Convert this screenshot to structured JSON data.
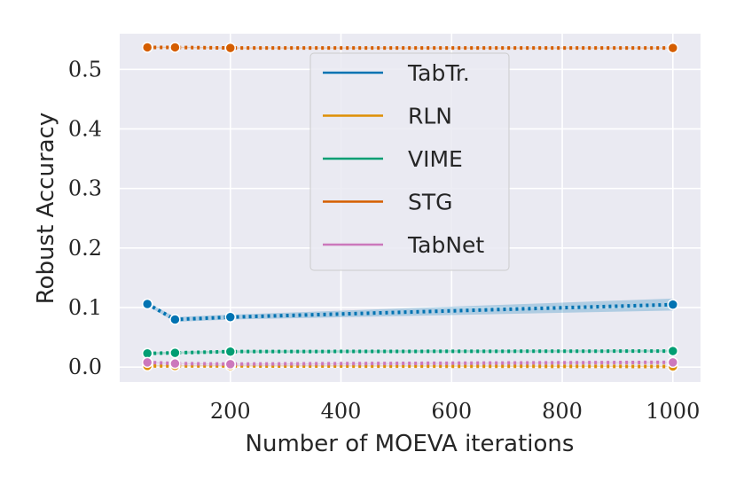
{
  "chart_data": {
    "type": "line",
    "xlabel": "Number of MOEVA iterations",
    "ylabel": "Robust Accuracy",
    "xlim": [
      0,
      1050
    ],
    "ylim": [
      -0.025,
      0.56
    ],
    "xticks": [
      200,
      400,
      600,
      800,
      1000
    ],
    "xtick_labels": [
      "200",
      "400",
      "600",
      "800",
      "1000"
    ],
    "yticks": [
      0.0,
      0.1,
      0.2,
      0.3,
      0.4,
      0.5
    ],
    "ytick_labels": [
      "0.0",
      "0.1",
      "0.2",
      "0.3",
      "0.4",
      "0.5"
    ],
    "grid": true,
    "legend_position": "upper-center",
    "x": [
      50,
      100,
      200,
      1000
    ],
    "series": [
      {
        "name": "TabTr.",
        "color": "#0173b2",
        "values": [
          0.106,
          0.08,
          0.084,
          0.105
        ],
        "band": [
          0.003,
          0.004,
          0.004,
          0.01
        ]
      },
      {
        "name": "RLN",
        "color": "#de8f05",
        "values": [
          0.002,
          0.002,
          0.002,
          0.001
        ],
        "band": [
          0.001,
          0.001,
          0.001,
          0.001
        ]
      },
      {
        "name": "VIME",
        "color": "#029e73",
        "values": [
          0.023,
          0.024,
          0.026,
          0.027
        ],
        "band": [
          0.002,
          0.002,
          0.002,
          0.002
        ]
      },
      {
        "name": "STG",
        "color": "#d55e00",
        "values": [
          0.537,
          0.537,
          0.536,
          0.536
        ],
        "band": [
          0.001,
          0.001,
          0.001,
          0.001
        ]
      },
      {
        "name": "TabNet",
        "color": "#cc78bc",
        "values": [
          0.008,
          0.006,
          0.005,
          0.008
        ],
        "band": [
          0.001,
          0.001,
          0.001,
          0.001
        ]
      }
    ]
  }
}
